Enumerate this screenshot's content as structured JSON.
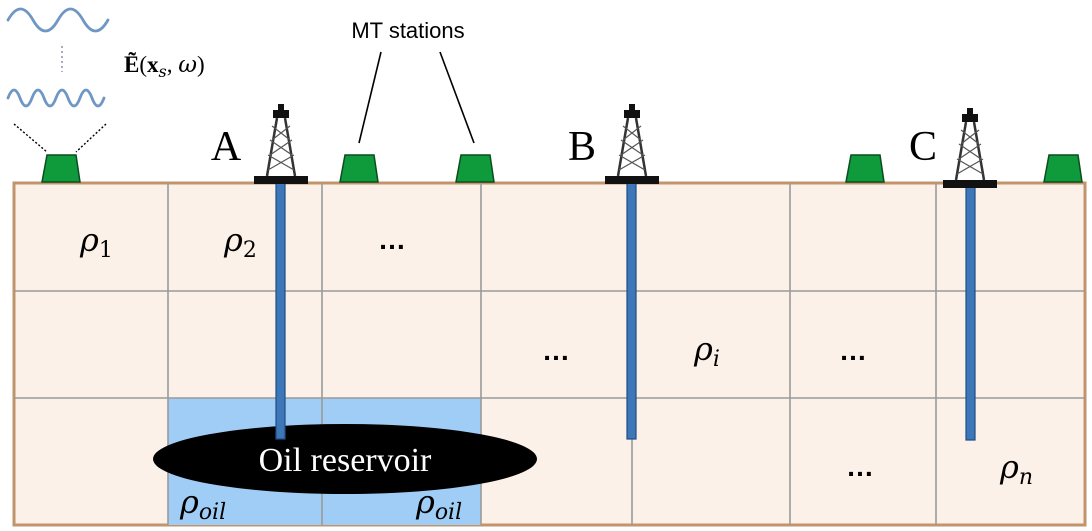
{
  "source_label": "Ẽ(x_s, ω)",
  "source_label_parts": {
    "symbol": "Ẽ",
    "open": "(",
    "x": "x",
    "sub": "s",
    "sep": ", ",
    "omega": "ω",
    "close": ")"
  },
  "stations_label": "MT stations",
  "wells": [
    {
      "label": "A"
    },
    {
      "label": "B"
    },
    {
      "label": "C"
    }
  ],
  "cells": {
    "rho1": {
      "base": "ρ",
      "sub": "1"
    },
    "rho2": {
      "base": "ρ",
      "sub": "2"
    },
    "rhoi": {
      "base": "ρ",
      "sub": "i"
    },
    "rhon": {
      "base": "ρ",
      "sub": "n"
    },
    "rho_oil_left": {
      "base": "ρ",
      "sub": "oil"
    },
    "rho_oil_right": {
      "base": "ρ",
      "sub": "oil"
    }
  },
  "ellipsis": "…",
  "reservoir_label": "Oil reservoir",
  "colors": {
    "ground_fill": "#fbf1e8",
    "ground_border": "#c1946b",
    "grid_line": "#9a9a9a",
    "reservoir_fill": "#9fcdf5",
    "reservoir_ellipse": "#000000",
    "well_pipe": "#3d77b8",
    "station_fill": "#0f9a3c",
    "wave": "#6f97c4"
  }
}
